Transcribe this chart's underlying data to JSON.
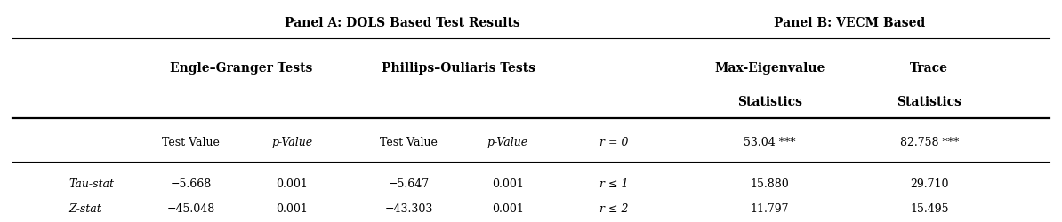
{
  "panel_a_header": "Panel A: DOLS Based Test Results",
  "panel_b_header": "Panel B: VECM Based",
  "subheader_eg": "Engle–Granger Tests",
  "subheader_po": "Phillips–Ouliaris Tests",
  "subheader_max": "Max-Eigenvalue",
  "subheader_trace": "Trace",
  "subheader_stats": "Statistics",
  "col_headers_row1": [
    "Test Value",
    "p-Value",
    "Test Value",
    "p-Value",
    "r = 0",
    "53.04 ***",
    "82.758 ***"
  ],
  "row1_label": "Tau-stat",
  "row1_data": [
    "−5.668",
    "0.001",
    "−5.647",
    "0.001",
    "r ≤ 1",
    "15.880",
    "29.710"
  ],
  "row2_label": "Z-stat",
  "row2_data": [
    "−45.048",
    "0.001",
    "−43.303",
    "0.001",
    "r ≤ 2",
    "11.797",
    "15.495"
  ],
  "bg_color": "#ffffff",
  "text_color": "#000000",
  "line_color": "#000000",
  "figsize": [
    11.94,
    2.51
  ],
  "dpi": 100
}
